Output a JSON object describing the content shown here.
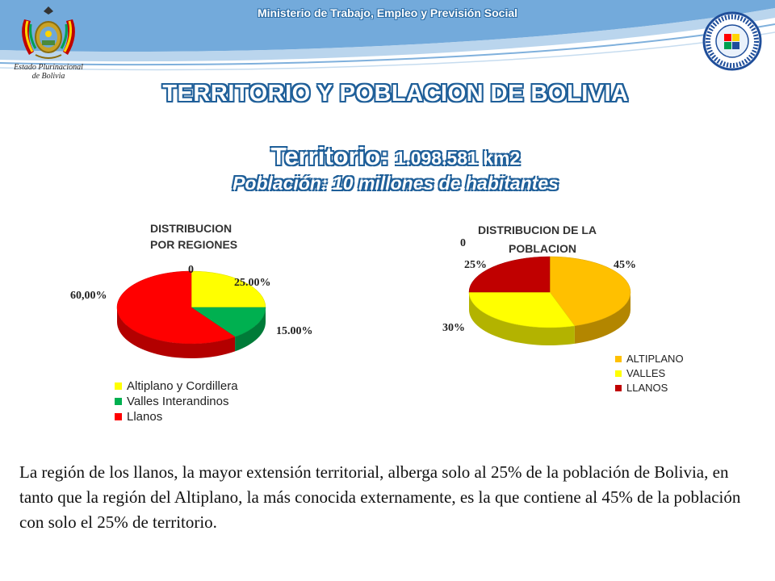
{
  "header": {
    "ministry": "Ministerio de Trabajo, Empleo y Previsión Social",
    "state_line1": "Estado Plurinacional",
    "state_line2": "de Bolivia"
  },
  "title": "TERRITORIO Y POBLACION  DE BOLIVIA",
  "territory": {
    "label": "Territorio:",
    "value": "1.098.581 km2"
  },
  "population": "Población: 10 millones de habitantes",
  "icons": [
    "coat-of-arms-icon",
    "ministry-seal-icon"
  ],
  "colors": {
    "header_blue": "#2e6da4",
    "title_outline": "#1f5f99",
    "red": "#ff0000",
    "yellow": "#ffff00",
    "green": "#00b050",
    "orange": "#ffc000",
    "dark_red": "#c00000"
  },
  "chart_data": [
    {
      "type": "pie",
      "title_line1": "DISTRIBUCION",
      "title_line2": "POR REGIONES",
      "categories": [
        "Altiplano y Cordillera",
        "Valles Interandinos",
        "Llanos"
      ],
      "values": [
        25,
        15,
        60
      ],
      "colors": [
        "#ffff00",
        "#00b050",
        "#ff0000"
      ],
      "data_labels": [
        "25.00%",
        "15.00%",
        "60,00%"
      ],
      "extra_label": "0",
      "legend_position": "bottom"
    },
    {
      "type": "pie",
      "title_line1": "DISTRIBUCION DE LA",
      "title_line2": "POBLACION",
      "categories": [
        "ALTIPLANO",
        "VALLES",
        "LLANOS"
      ],
      "values": [
        45,
        30,
        25
      ],
      "colors": [
        "#ffc000",
        "#ffff00",
        "#c00000"
      ],
      "data_labels": [
        "45%",
        "30%",
        "25%"
      ],
      "extra_label": "0",
      "legend_position": "bottom-right"
    }
  ],
  "paragraph": "La región de los llanos, la mayor extensión territorial, alberga solo al 25% de la población de Bolivia, en tanto que la región del Altiplano, la más conocida externamente, es la que  contiene al 45% de la población con solo el 25% de territorio."
}
